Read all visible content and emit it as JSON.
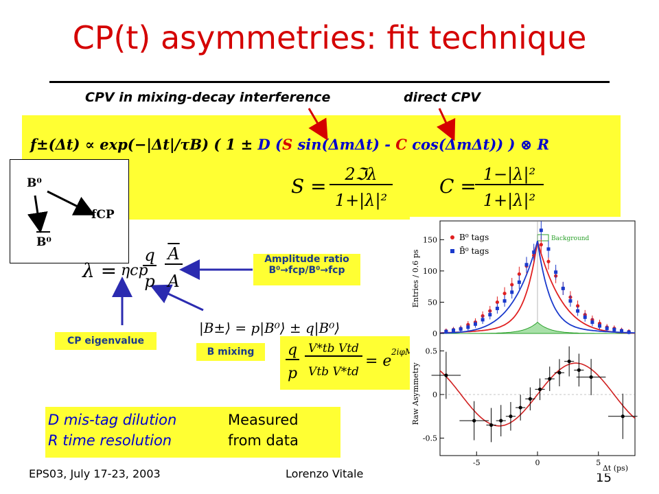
{
  "slide": {
    "title": "CP(t) asymmetries: fit technique",
    "sub_left": "CPV in mixing-decay interference",
    "sub_right": "direct CPV",
    "formula": {
      "f": "f±(Δt)",
      "prop": "∝ exp(−|Δt|/τB) ( 1 ±",
      "D": "D",
      "paren": "(",
      "S": "S",
      "sin": "sin(ΔmΔt) -",
      "C": "C",
      "cos": "cos(ΔmΔt)) ) ⊗ R"
    },
    "S_eq": {
      "lhs": "S =",
      "num": "2ℑλ",
      "den": "1+|λ|²"
    },
    "C_eq": {
      "lhs": "C =",
      "num": "1−|λ|²",
      "den": "1+|λ|²"
    },
    "triangle": {
      "b0_top": "B⁰",
      "b0_bottom": "B⁰",
      "fcp": "fCP"
    },
    "lambda_eq": {
      "lambda": "λ =",
      "eta": "ηcp",
      "q": "q",
      "p": "p",
      "A_num": "A",
      "A_den": "A"
    },
    "amplitude_label": {
      "line1": "Amplitude ratio",
      "line2": "B⁰→fcp/B⁰→fcp"
    },
    "mixing_state": "|B±⟩ = p|B⁰⟩ ± q|B⁰⟩",
    "cp_eigen_label": "CP eigenvalue",
    "b_mixing_label": "B mixing",
    "qp_eq": {
      "q": "q",
      "p": "p",
      "num": "V*tb Vtd",
      "den": "Vtb V*td",
      "rhs": "= e",
      "exp": "2iφM"
    },
    "notes": [
      {
        "term": "D mis-tag dilution",
        "desc": "Measured"
      },
      {
        "term": "R time resolution",
        "desc": "from data"
      }
    ],
    "footer_left": "EPS03, July 17-23, 2003",
    "footer_center": "Lorenzo Vitale",
    "page_number": "15"
  },
  "chart_data": [
    {
      "type": "scatter",
      "ylabel": "Entries / 0.6 ps",
      "yticks": [
        0,
        50,
        100,
        150
      ],
      "legend": [
        "B⁰ tags",
        "B̄⁰ tags",
        "Background"
      ],
      "series": [
        {
          "name": "B⁰ tags",
          "color": "#e02020",
          "x": [
            -7.5,
            -6.9,
            -6.3,
            -5.7,
            -5.1,
            -4.5,
            -3.9,
            -3.3,
            -2.7,
            -2.1,
            -1.5,
            -0.9,
            -0.3,
            0.3,
            0.9,
            1.5,
            2.1,
            2.7,
            3.3,
            3.9,
            4.5,
            5.1,
            5.7,
            6.3,
            6.9,
            7.5
          ],
          "y": [
            4,
            6,
            8,
            14,
            18,
            28,
            36,
            50,
            64,
            78,
            95,
            108,
            125,
            142,
            115,
            92,
            72,
            58,
            44,
            30,
            22,
            16,
            10,
            8,
            5,
            3
          ]
        },
        {
          "name": "B̄⁰ tags",
          "color": "#1a3acc",
          "x": [
            -7.5,
            -6.9,
            -6.3,
            -5.7,
            -5.1,
            -4.5,
            -3.9,
            -3.3,
            -2.7,
            -2.1,
            -1.5,
            -0.9,
            -0.3,
            0.3,
            0.9,
            1.5,
            2.1,
            2.7,
            3.3,
            3.9,
            4.5,
            5.1,
            5.7,
            6.3,
            6.9,
            7.5
          ],
          "y": [
            3,
            5,
            7,
            10,
            15,
            22,
            30,
            40,
            52,
            66,
            82,
            110,
            130,
            165,
            135,
            98,
            72,
            52,
            36,
            26,
            18,
            12,
            8,
            6,
            4,
            2
          ]
        }
      ]
    },
    {
      "type": "scatter",
      "xlabel": "Δt (ps)",
      "ylabel": "Raw Asymmetry",
      "xticks": [
        -5,
        0,
        5
      ],
      "yticks": [
        -0.5,
        0,
        0.5
      ],
      "series": [
        {
          "name": "",
          "color": "#000000",
          "x": [
            -7.5,
            -5.2,
            -3.8,
            -3.0,
            -2.2,
            -1.4,
            -0.6,
            0.2,
            1.0,
            1.8,
            2.6,
            3.4,
            4.4,
            7.0
          ],
          "y": [
            0.22,
            -0.3,
            -0.35,
            -0.3,
            -0.25,
            -0.15,
            -0.05,
            0.06,
            0.18,
            0.25,
            0.38,
            0.28,
            0.2,
            -0.25
          ]
        }
      ]
    }
  ]
}
